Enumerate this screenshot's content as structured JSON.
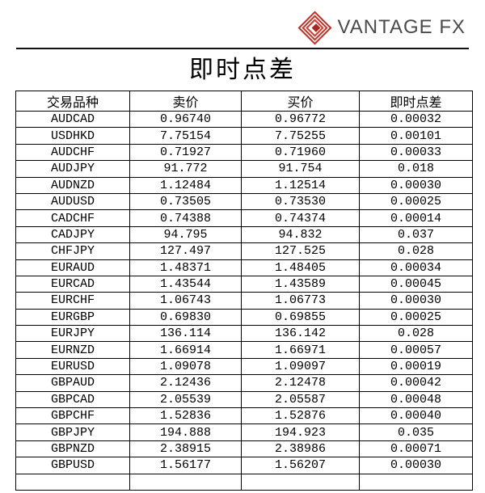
{
  "brand": {
    "name": "VANTAGE FX",
    "logo_red": "#c13a30",
    "logo_dark_red": "#a72a20",
    "text_color": "#4b4b4d"
  },
  "page": {
    "title": "即时点差"
  },
  "table": {
    "headers": [
      "交易品种",
      "卖价",
      "买价",
      "即时点差"
    ],
    "rows": [
      [
        "AUDCAD",
        "0.96740",
        "0.96772",
        "0.00032"
      ],
      [
        "USDHKD",
        "7.75154",
        "7.75255",
        "0.00101"
      ],
      [
        "AUDCHF",
        "0.71927",
        "0.71960",
        "0.00033"
      ],
      [
        "AUDJPY",
        "91.772",
        "91.754",
        "0.018"
      ],
      [
        "AUDNZD",
        "1.12484",
        "1.12514",
        "0.00030"
      ],
      [
        "AUDUSD",
        "0.73505",
        "0.73530",
        "0.00025"
      ],
      [
        "CADCHF",
        "0.74388",
        "0.74374",
        "0.00014"
      ],
      [
        "CADJPY",
        "94.795",
        "94.832",
        "0.037"
      ],
      [
        "CHFJPY",
        "127.497",
        "127.525",
        "0.028"
      ],
      [
        "EURAUD",
        "1.48371",
        "1.48405",
        "0.00034"
      ],
      [
        "EURCAD",
        "1.43544",
        "1.43589",
        "0.00045"
      ],
      [
        "EURCHF",
        "1.06743",
        "1.06773",
        "0.00030"
      ],
      [
        "EURGBP",
        "0.69830",
        "0.69855",
        "0.00025"
      ],
      [
        "EURJPY",
        "136.114",
        "136.142",
        "0.028"
      ],
      [
        "EURNZD",
        "1.66914",
        "1.66971",
        "0.00057"
      ],
      [
        "EURUSD",
        "1.09078",
        "1.09097",
        "0.00019"
      ],
      [
        "GBPAUD",
        "2.12436",
        "2.12478",
        "0.00042"
      ],
      [
        "GBPCAD",
        "2.05539",
        "2.05587",
        "0.00048"
      ],
      [
        "GBPCHF",
        "1.52836",
        "1.52876",
        "0.00040"
      ],
      [
        "GBPJPY",
        "194.888",
        "194.923",
        "0.035"
      ],
      [
        "GBPNZD",
        "2.38915",
        "2.38986",
        "0.00071"
      ],
      [
        "GBPUSD",
        "1.56177",
        "1.56207",
        "0.00030"
      ]
    ],
    "partial_row": [
      "",
      "",
      "",
      ""
    ]
  }
}
